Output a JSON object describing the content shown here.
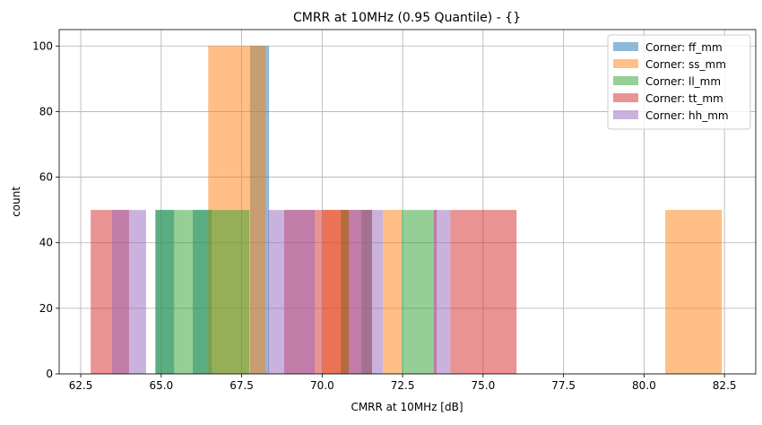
{
  "chart_data": {
    "type": "bar",
    "title": "CMRR at 10MHz (0.95 Quantile) - {}",
    "xlabel": "CMRR at 10MHz [dB]",
    "ylabel": "count",
    "xlim": [
      61.83,
      83.47
    ],
    "ylim": [
      0,
      105
    ],
    "xticks": [
      "62.5",
      "65.0",
      "67.5",
      "70.0",
      "72.5",
      "75.0",
      "77.5",
      "80.0",
      "82.5"
    ],
    "yticks": [
      "0",
      "20",
      "40",
      "60",
      "80",
      "100"
    ],
    "grid": true,
    "legend_position": "top-right",
    "series": [
      {
        "name": "Corner: ff_mm",
        "color": "#1f77b4",
        "bars": [
          [
            64.81,
            65.4,
            50
          ],
          [
            65.98,
            66.57,
            50
          ],
          [
            67.76,
            68.35,
            100
          ]
        ]
      },
      {
        "name": "Corner: ss_mm",
        "color": "#ff7f0e",
        "bars": [
          [
            66.46,
            68.24,
            100
          ],
          [
            70.02,
            70.83,
            50
          ],
          [
            71.89,
            72.47,
            50
          ],
          [
            80.66,
            82.42,
            50
          ]
        ]
      },
      {
        "name": "Corner: ll_mm",
        "color": "#2ca02c",
        "bars": [
          [
            64.84,
            67.74,
            50
          ],
          [
            70.58,
            70.83,
            50
          ],
          [
            71.22,
            71.55,
            50
          ],
          [
            72.47,
            73.47,
            50
          ]
        ]
      },
      {
        "name": "Corner: tt_mm",
        "color": "#d62728",
        "bars": [
          [
            62.81,
            64.0,
            50
          ],
          [
            68.82,
            71.55,
            50
          ],
          [
            73.47,
            73.56,
            50
          ],
          [
            73.98,
            76.04,
            50
          ]
        ]
      },
      {
        "name": "Corner: hh_mm",
        "color": "#9467bd",
        "bars": [
          [
            63.47,
            64.53,
            50
          ],
          [
            68.32,
            69.77,
            50
          ],
          [
            70.83,
            71.89,
            50
          ],
          [
            73.47,
            73.98,
            50
          ]
        ]
      }
    ]
  }
}
